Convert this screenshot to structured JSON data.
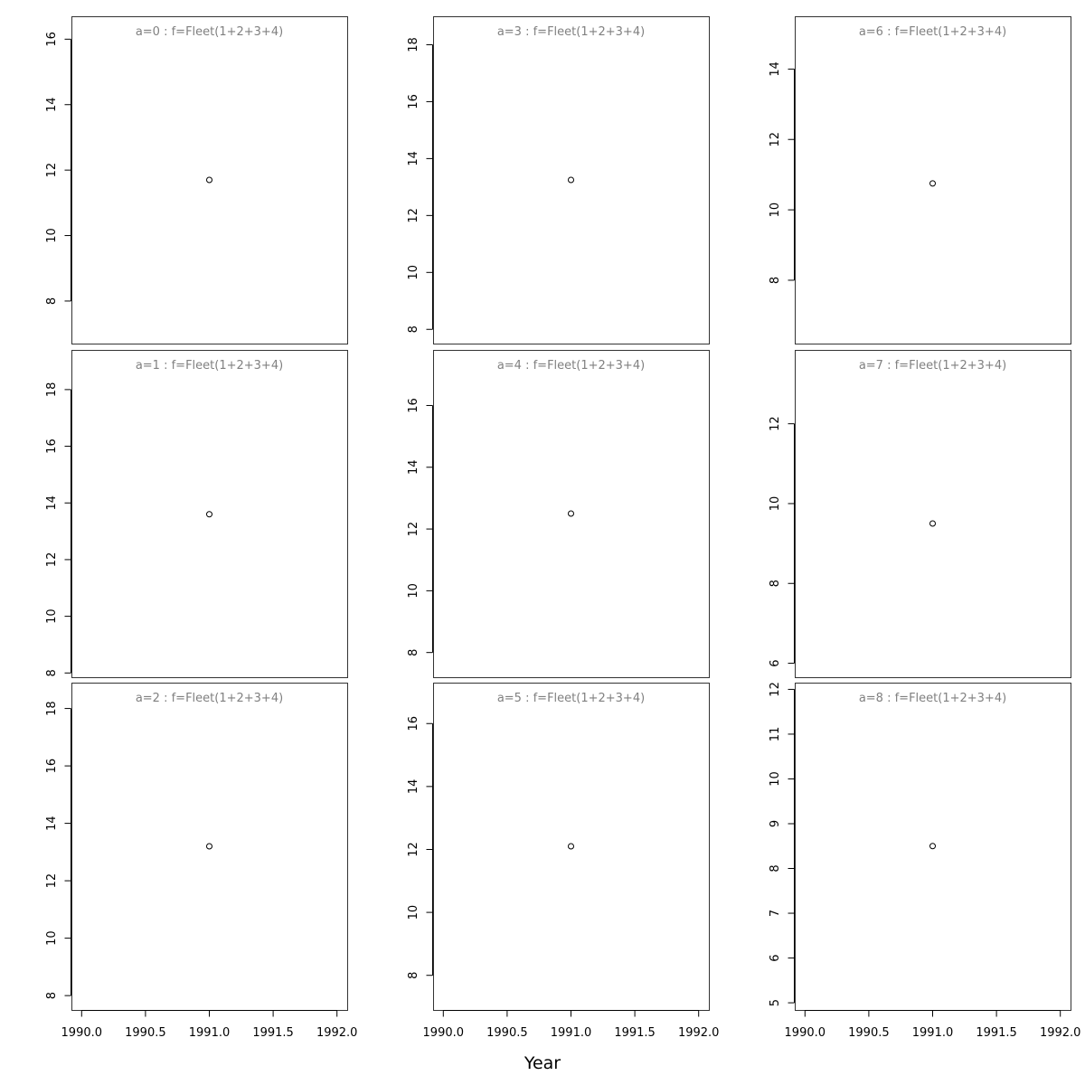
{
  "chart_data": {
    "type": "scatter",
    "xlabel": "Year",
    "xlim": [
      1989.92,
      1992.08
    ],
    "xticks": [
      "1990.0",
      "1990.5",
      "1991.0",
      "1991.5",
      "1992.0"
    ],
    "panels": [
      {
        "title": "a=0 : f=Fleet(1+2+3+4)",
        "x": [
          1991.0
        ],
        "y": [
          11.7
        ],
        "ylim": [
          6.7,
          16.7
        ],
        "yticks": [
          8,
          10,
          12,
          14,
          16
        ]
      },
      {
        "title": "a=1 : f=Fleet(1+2+3+4)",
        "x": [
          1991.0
        ],
        "y": [
          13.6
        ],
        "ylim": [
          7.85,
          19.4
        ],
        "yticks": [
          8,
          10,
          12,
          14,
          16,
          18
        ]
      },
      {
        "title": "a=2 : f=Fleet(1+2+3+4)",
        "x": [
          1991.0
        ],
        "y": [
          13.2
        ],
        "ylim": [
          7.5,
          18.9
        ],
        "yticks": [
          8,
          10,
          12,
          14,
          16,
          18
        ]
      },
      {
        "title": "a=3 : f=Fleet(1+2+3+4)",
        "x": [
          1991.0
        ],
        "y": [
          13.25
        ],
        "ylim": [
          7.5,
          19.0
        ],
        "yticks": [
          8,
          10,
          12,
          14,
          16,
          18
        ]
      },
      {
        "title": "a=4 : f=Fleet(1+2+3+4)",
        "x": [
          1991.0
        ],
        "y": [
          12.5
        ],
        "ylim": [
          7.2,
          17.8
        ],
        "yticks": [
          8,
          10,
          12,
          14,
          16
        ]
      },
      {
        "title": "a=5 : f=Fleet(1+2+3+4)",
        "x": [
          1991.0
        ],
        "y": [
          12.1
        ],
        "ylim": [
          6.9,
          17.3
        ],
        "yticks": [
          8,
          10,
          12,
          14,
          16
        ]
      },
      {
        "title": "a=6 : f=Fleet(1+2+3+4)",
        "x": [
          1991.0
        ],
        "y": [
          10.75
        ],
        "ylim": [
          6.2,
          15.5
        ],
        "yticks": [
          8,
          10,
          12,
          14
        ]
      },
      {
        "title": "a=7 : f=Fleet(1+2+3+4)",
        "x": [
          1991.0
        ],
        "y": [
          9.5
        ],
        "ylim": [
          5.65,
          13.85
        ],
        "yticks": [
          6,
          8,
          10,
          12
        ]
      },
      {
        "title": "a=8 : f=Fleet(1+2+3+4)",
        "x": [
          1991.0
        ],
        "y": [
          8.5
        ],
        "ylim": [
          4.84,
          12.15
        ],
        "yticks": [
          5,
          6,
          7,
          8,
          9,
          10,
          11,
          12
        ]
      }
    ]
  }
}
